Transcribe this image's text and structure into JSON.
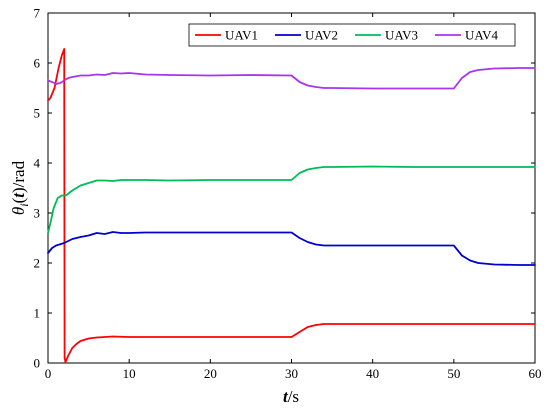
{
  "chart_data": {
    "type": "line",
    "xlabel_main": "t",
    "xlabel_unit": "/s",
    "ylabel_theta": "θ",
    "ylabel_sub": "i",
    "ylabel_paren_open": "(",
    "ylabel_t": "t",
    "ylabel_paren_close": ")",
    "ylabel_unit": "/rad",
    "xlim": [
      0,
      60
    ],
    "ylim": [
      0,
      7
    ],
    "xticks": [
      0,
      10,
      20,
      30,
      40,
      50,
      60
    ],
    "yticks": [
      0,
      1,
      2,
      3,
      4,
      5,
      6,
      7
    ],
    "xtick_labels": [
      "0",
      "10",
      "20",
      "30",
      "40",
      "50",
      "60"
    ],
    "ytick_labels": [
      "0",
      "1",
      "2",
      "3",
      "4",
      "5",
      "6",
      "7"
    ],
    "grid": false,
    "legend_position": "top-right",
    "legend_orientation": "horizontal",
    "series": [
      {
        "name": "UAV1",
        "color": "#ff0000",
        "x": [
          0,
          0.3,
          0.8,
          1.3,
          1.7,
          2.0,
          2.05,
          2.15,
          2.5,
          3,
          3.5,
          4,
          5,
          6,
          8,
          10,
          15,
          20,
          25,
          30,
          31,
          32,
          33,
          34,
          35,
          40,
          45,
          50,
          55,
          60
        ],
        "y": [
          5.25,
          5.3,
          5.5,
          5.9,
          6.15,
          6.28,
          0.1,
          0.02,
          0.15,
          0.3,
          0.38,
          0.44,
          0.49,
          0.51,
          0.53,
          0.52,
          0.52,
          0.52,
          0.52,
          0.52,
          0.62,
          0.72,
          0.76,
          0.78,
          0.78,
          0.78,
          0.78,
          0.78,
          0.78,
          0.78
        ]
      },
      {
        "name": "UAV2",
        "color": "#0000cc",
        "x": [
          0,
          0.5,
          1,
          2,
          3,
          4,
          5,
          6,
          7,
          8,
          9,
          10,
          12,
          15,
          20,
          25,
          30,
          31,
          32,
          33,
          34,
          35,
          40,
          45,
          50,
          51,
          52,
          53,
          55,
          58,
          60
        ],
        "y": [
          2.2,
          2.3,
          2.35,
          2.4,
          2.48,
          2.52,
          2.55,
          2.6,
          2.58,
          2.62,
          2.6,
          2.6,
          2.61,
          2.61,
          2.61,
          2.61,
          2.61,
          2.5,
          2.42,
          2.37,
          2.35,
          2.35,
          2.35,
          2.35,
          2.35,
          2.15,
          2.05,
          2.0,
          1.97,
          1.96,
          1.96
        ]
      },
      {
        "name": "UAV3",
        "color": "#00bb55",
        "x": [
          0,
          0.3,
          0.7,
          1.2,
          1.7,
          2.2,
          3,
          4,
          5,
          6,
          7,
          8,
          9,
          10,
          12,
          15,
          20,
          25,
          30,
          31,
          32,
          33,
          34,
          35,
          40,
          45,
          50,
          55,
          60
        ],
        "y": [
          2.6,
          2.8,
          3.1,
          3.3,
          3.35,
          3.35,
          3.45,
          3.55,
          3.6,
          3.65,
          3.65,
          3.64,
          3.66,
          3.66,
          3.66,
          3.65,
          3.66,
          3.66,
          3.66,
          3.8,
          3.87,
          3.9,
          3.92,
          3.92,
          3.93,
          3.92,
          3.92,
          3.92,
          3.92
        ]
      },
      {
        "name": "UAV4",
        "color": "#aa33ee",
        "x": [
          0,
          0.5,
          1,
          1.5,
          2,
          2.5,
          3,
          4,
          5,
          6,
          7,
          8,
          9,
          10,
          12,
          15,
          20,
          25,
          30,
          31,
          32,
          33,
          34,
          35,
          40,
          45,
          50,
          51,
          52,
          53,
          55,
          58,
          60
        ],
        "y": [
          5.65,
          5.62,
          5.58,
          5.6,
          5.65,
          5.7,
          5.72,
          5.75,
          5.75,
          5.77,
          5.76,
          5.8,
          5.79,
          5.8,
          5.77,
          5.76,
          5.75,
          5.76,
          5.75,
          5.62,
          5.55,
          5.52,
          5.5,
          5.5,
          5.49,
          5.49,
          5.49,
          5.7,
          5.82,
          5.86,
          5.89,
          5.9,
          5.9
        ]
      }
    ]
  }
}
